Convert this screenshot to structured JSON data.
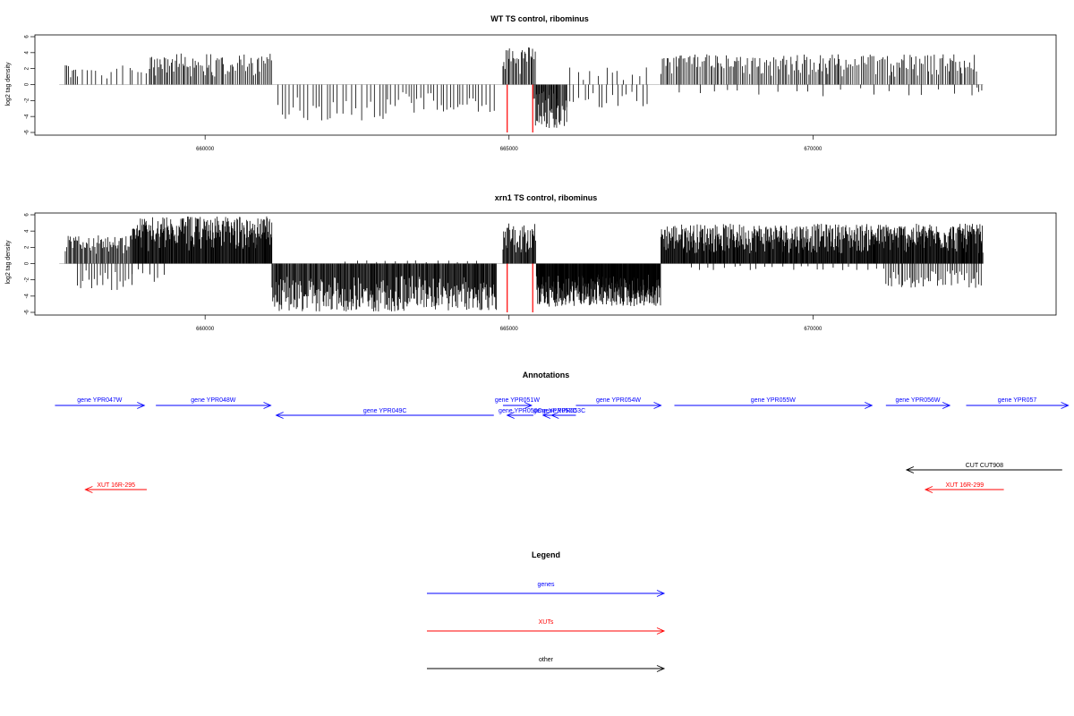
{
  "colors": {
    "gene": "#0000ff",
    "xut": "#ff0000",
    "other": "#000000",
    "marker": "#ff0000",
    "bar": "#000000",
    "axis": "#000000"
  },
  "chart_data": [
    {
      "type": "bar",
      "title": "WT TS control, ribominus",
      "ylabel": "log2 tag density",
      "ylim": [
        -6,
        6
      ],
      "yticks": [
        -6,
        -4,
        -2,
        0,
        2,
        4,
        6
      ],
      "xlim": [
        657200,
        674000
      ],
      "xticks": [
        660000,
        665000,
        670000
      ],
      "markers": [
        664970,
        665390
      ],
      "segments": [
        {
          "from": 657700,
          "to": 657900,
          "sign": 1,
          "max": 2.6,
          "step": 30
        },
        {
          "from": 657900,
          "to": 658300,
          "sign": 1,
          "max": 2.0,
          "step": 80
        },
        {
          "from": 658300,
          "to": 658800,
          "sign": 1,
          "max": 2.5,
          "step": 90
        },
        {
          "from": 658800,
          "to": 659100,
          "sign": 1,
          "max": 2.5,
          "step": 70
        },
        {
          "from": 659100,
          "to": 661100,
          "sign": 1,
          "max": 3.9,
          "step": 25
        },
        {
          "from": 661200,
          "to": 663000,
          "sign": -1,
          "max": 4.5,
          "step": 70
        },
        {
          "from": 663000,
          "to": 664800,
          "sign": -1,
          "max": 3.6,
          "step": 55
        },
        {
          "from": 664900,
          "to": 665450,
          "sign": 1,
          "max": 4.8,
          "step": 20
        },
        {
          "from": 665450,
          "to": 665800,
          "sign": -1,
          "max": 2.0,
          "step": 40
        },
        {
          "from": 665400,
          "to": 665950,
          "sign": -1,
          "max": 5.5,
          "step": 15
        },
        {
          "from": 665950,
          "to": 667300,
          "sign": -1,
          "max": 3.0,
          "step": 80
        },
        {
          "from": 666000,
          "to": 667300,
          "sign": 1,
          "max": 2.2,
          "step": 110
        },
        {
          "from": 667500,
          "to": 672700,
          "sign": 1,
          "max": 3.8,
          "step": 28
        },
        {
          "from": 667800,
          "to": 672700,
          "sign": -1,
          "max": 1.5,
          "step": 260
        },
        {
          "from": 672700,
          "to": 672800,
          "sign": -1,
          "max": 1.0,
          "step": 40
        }
      ]
    },
    {
      "type": "bar",
      "title": "xrn1 TS control, ribominus",
      "ylabel": "log2 tag density",
      "ylim": [
        -6,
        6
      ],
      "yticks": [
        -6,
        -4,
        -2,
        0,
        2,
        4,
        6
      ],
      "xlim": [
        657200,
        674000
      ],
      "xticks": [
        660000,
        665000,
        670000
      ],
      "markers": [
        664970,
        665390
      ],
      "segments": [
        {
          "from": 657700,
          "to": 658800,
          "sign": 1,
          "max": 3.5,
          "step": 18
        },
        {
          "from": 657900,
          "to": 658800,
          "sign": -1,
          "max": 3.3,
          "step": 45
        },
        {
          "from": 658800,
          "to": 661100,
          "sign": 1,
          "max": 5.8,
          "step": 10
        },
        {
          "from": 658800,
          "to": 659400,
          "sign": -1,
          "max": 2.3,
          "step": 90
        },
        {
          "from": 661100,
          "to": 664800,
          "sign": -1,
          "max": 5.9,
          "step": 12
        },
        {
          "from": 662300,
          "to": 664600,
          "sign": 1,
          "max": 0.4,
          "step": 160
        },
        {
          "from": 664900,
          "to": 665450,
          "sign": 1,
          "max": 5.0,
          "step": 12
        },
        {
          "from": 665450,
          "to": 667500,
          "sign": -1,
          "max": 5.3,
          "step": 7
        },
        {
          "from": 667500,
          "to": 672800,
          "sign": 1,
          "max": 4.9,
          "step": 10
        },
        {
          "from": 668000,
          "to": 671200,
          "sign": -1,
          "max": 0.8,
          "step": 140
        },
        {
          "from": 671200,
          "to": 672800,
          "sign": -1,
          "max": 3.0,
          "step": 30
        }
      ]
    },
    {
      "type": "annotation-track",
      "title": "Annotations",
      "features": [
        {
          "label": "gene YPR047W",
          "class": "gene",
          "start": 657530,
          "end": 659000,
          "strand": "+",
          "row": 1
        },
        {
          "label": "gene YPR048W",
          "class": "gene",
          "start": 659190,
          "end": 661080,
          "strand": "+",
          "row": 1
        },
        {
          "label": "gene YPR049C",
          "class": "gene",
          "start": 661170,
          "end": 664750,
          "strand": "-",
          "row": 2
        },
        {
          "label": "gene YPR051W",
          "class": "gene",
          "start": 664900,
          "end": 665370,
          "strand": "+",
          "row": 1
        },
        {
          "label": "gene YPR050C",
          "class": "gene",
          "start": 664970,
          "end": 665400,
          "strand": "-",
          "row": 2
        },
        {
          "label": "gene YPR052C",
          "class": "gene",
          "start": 665560,
          "end": 665950,
          "strand": "-",
          "row": 2
        },
        {
          "label": "gene YPR053C",
          "class": "gene",
          "start": 665700,
          "end": 666100,
          "strand": "-",
          "row": 2
        },
        {
          "label": "gene YPR054W",
          "class": "gene",
          "start": 666100,
          "end": 667500,
          "strand": "+",
          "row": 1
        },
        {
          "label": "gene YPR055W",
          "class": "gene",
          "start": 667720,
          "end": 670970,
          "strand": "+",
          "row": 1
        },
        {
          "label": "gene YPR056W",
          "class": "gene",
          "start": 671200,
          "end": 672250,
          "strand": "+",
          "row": 1
        },
        {
          "label": "gene YPR057",
          "class": "gene",
          "start": 672520,
          "end": 674200,
          "strand": "+",
          "row": 1
        },
        {
          "label": "CUT CUT908",
          "class": "other",
          "start": 671540,
          "end": 674100,
          "strand": "-",
          "row": 3
        },
        {
          "label": "XUT 16R-295",
          "class": "xut",
          "start": 658030,
          "end": 659040,
          "strand": "-",
          "row": 4
        },
        {
          "label": "XUT 16R-299",
          "class": "xut",
          "start": 671850,
          "end": 673140,
          "strand": "-",
          "row": 4
        }
      ]
    },
    {
      "type": "legend",
      "title": "Legend",
      "entries": [
        {
          "label": "genes",
          "class": "gene"
        },
        {
          "label": "XUTs",
          "class": "xut"
        },
        {
          "label": "other",
          "class": "other"
        }
      ]
    }
  ]
}
